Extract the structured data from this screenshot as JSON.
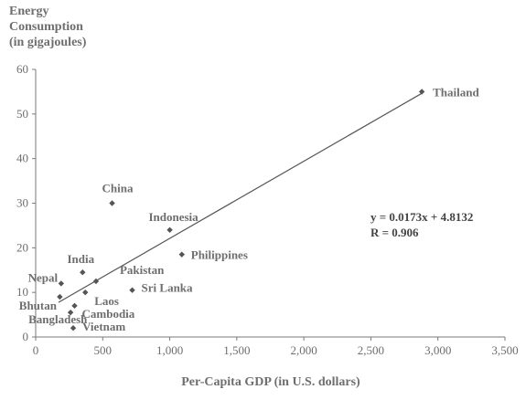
{
  "chart_data": {
    "type": "scatter",
    "ylabel_lines": [
      "Energy",
      "Consumption",
      "(in gigajoules)"
    ],
    "xlabel": "Per-Capita GDP (in U.S. dollars)",
    "xlim": [
      0,
      3500
    ],
    "ylim": [
      0,
      60
    ],
    "x_ticks": [
      0,
      500,
      1000,
      1500,
      2000,
      2500,
      3000,
      3500
    ],
    "x_tick_labels": [
      "0",
      "500",
      "1,000",
      "1,500",
      "2,000",
      "2,500",
      "3,000",
      "3,500"
    ],
    "y_ticks": [
      0,
      10,
      20,
      30,
      40,
      50,
      60
    ],
    "y_tick_labels": [
      "0",
      "10",
      "20",
      "30",
      "40",
      "50",
      "60"
    ],
    "grid": false,
    "points": [
      {
        "label": "Thailand",
        "x": 2880,
        "y": 55
      },
      {
        "label": "China",
        "x": 570,
        "y": 30
      },
      {
        "label": "Indonesia",
        "x": 1000,
        "y": 24
      },
      {
        "label": "Philippines",
        "x": 1090,
        "y": 18.5
      },
      {
        "label": "India",
        "x": 350,
        "y": 14.5
      },
      {
        "label": "Pakistan",
        "x": 450,
        "y": 12.5
      },
      {
        "label": "Sri Lanka",
        "x": 720,
        "y": 10.5
      },
      {
        "label": "Nepal",
        "x": 190,
        "y": 12
      },
      {
        "label": "Laos",
        "x": 370,
        "y": 10
      },
      {
        "label": "Bhutan",
        "x": 180,
        "y": 9
      },
      {
        "label": "Cambodia",
        "x": 290,
        "y": 7
      },
      {
        "label": "Bangladesh",
        "x": 260,
        "y": 5.5
      },
      {
        "label": "Vietnam",
        "x": 280,
        "y": 2
      }
    ],
    "trendline": {
      "slope": 0.0173,
      "intercept": 4.8132,
      "x_start": 170,
      "x_end": 2880
    },
    "annotation": [
      "y = 0.0173x + 4.8132",
      "R = 0.906"
    ],
    "colors": {
      "marker": "#555555",
      "line": "#555555",
      "axis": "#7a7a7a",
      "text": "#6e6e6e"
    }
  }
}
